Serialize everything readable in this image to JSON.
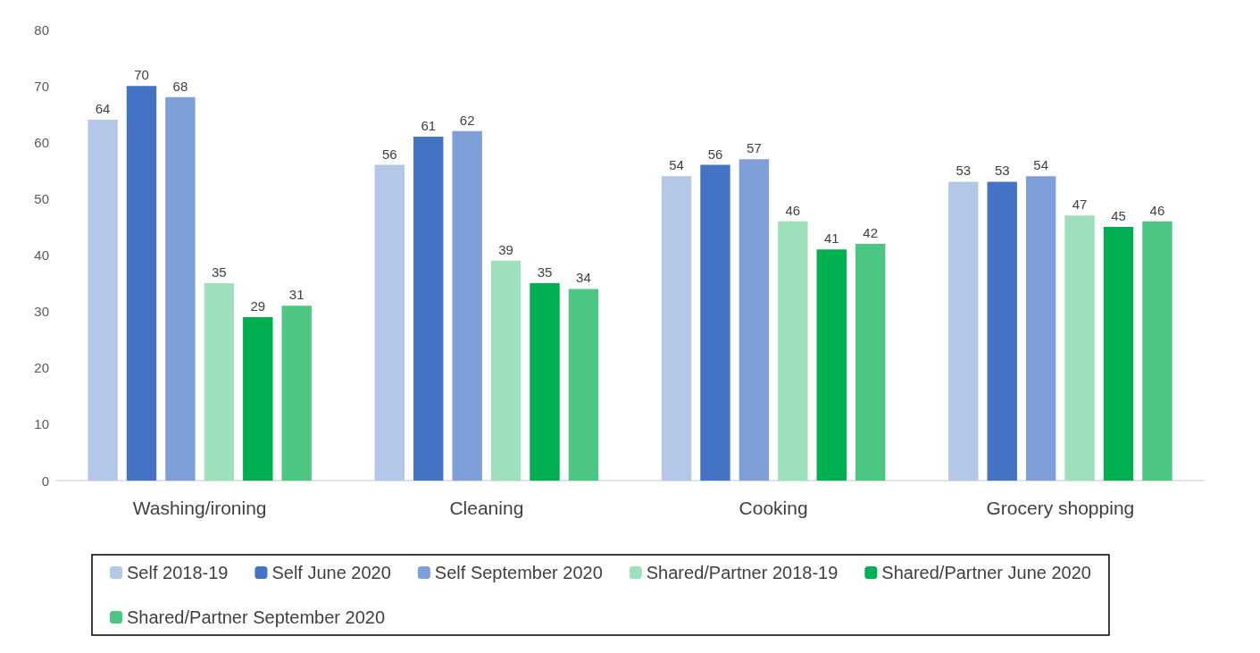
{
  "chart_data": {
    "type": "bar",
    "categories": [
      "Washing/ironing",
      "Cleaning",
      "Cooking",
      "Grocery shopping"
    ],
    "series": [
      {
        "name": "Self 2018-19",
        "color": "#b4c7e7",
        "values": [
          64,
          56,
          54,
          53
        ]
      },
      {
        "name": "Self June 2020",
        "color": "#4472c4",
        "values": [
          70,
          61,
          56,
          53
        ]
      },
      {
        "name": "Self September 2020",
        "color": "#7f9fd8",
        "values": [
          68,
          62,
          57,
          54
        ]
      },
      {
        "name": "Shared/Partner 2018-19",
        "color": "#9fe0bc",
        "values": [
          35,
          39,
          46,
          47
        ]
      },
      {
        "name": "Shared/Partner June 2020",
        "color": "#00b050",
        "values": [
          29,
          35,
          41,
          45
        ]
      },
      {
        "name": "Shared/Partner September 2020",
        "color": "#4cc683",
        "values": [
          31,
          34,
          42,
          46
        ]
      }
    ],
    "ylim": [
      0,
      80
    ],
    "yticks": [
      0,
      10,
      20,
      30,
      40,
      50,
      60,
      70,
      80
    ],
    "grid": false,
    "legend": "bottom",
    "data_labels": true
  }
}
